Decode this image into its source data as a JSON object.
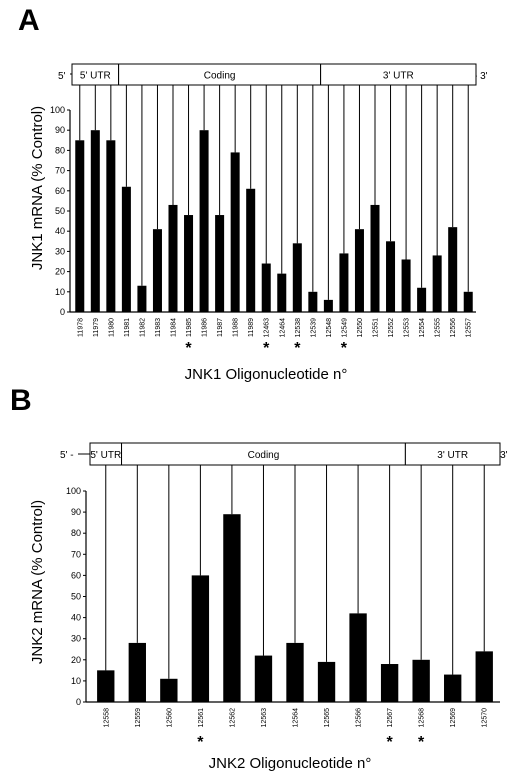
{
  "chart_data": [
    {
      "type": "bar",
      "panel_label": "A",
      "ylabel": "JNK1 mRNA (% Control)",
      "xlabel": "JNK1 Oligonucleotide n°",
      "ylim": [
        0,
        100
      ],
      "yticks": [
        0,
        10,
        20,
        30,
        40,
        50,
        60,
        70,
        80,
        90,
        100
      ],
      "end_labels": [
        "5'",
        "- 3'"
      ],
      "regions": [
        {
          "label": "5' UTR",
          "from": 0,
          "to": 2
        },
        {
          "label": "Coding",
          "from": 3,
          "to": 15
        },
        {
          "label": "3' UTR",
          "from": 16,
          "to": 27
        }
      ],
      "categories": [
        "11978",
        "11979",
        "11980",
        "11981",
        "11982",
        "11983",
        "11984",
        "11985",
        "11986",
        "11987",
        "11988",
        "11989",
        "12463",
        "12464",
        "12538",
        "12539",
        "12548",
        "12549",
        "12550",
        "12551",
        "12552",
        "12553",
        "12554",
        "12555",
        "12556",
        "12557"
      ],
      "values": [
        85,
        90,
        85,
        62,
        13,
        41,
        53,
        48,
        90,
        48,
        79,
        61,
        24,
        19,
        34,
        10,
        6,
        29,
        41,
        53,
        35,
        26,
        12,
        28,
        42,
        10
      ],
      "starred": [
        "11985",
        "12463",
        "12538",
        "12549"
      ]
    },
    {
      "type": "bar",
      "panel_label": "B",
      "ylabel": "JNK2 mRNA (% Control)",
      "xlabel": "JNK2 Oligonucleotide n°",
      "ylim": [
        0,
        100
      ],
      "yticks": [
        0,
        10,
        20,
        30,
        40,
        50,
        60,
        70,
        80,
        90,
        100
      ],
      "end_labels": [
        "5' -",
        "- 3'"
      ],
      "regions": [
        {
          "label": "5' UTR",
          "from": 0,
          "to": 0
        },
        {
          "label": "Coding",
          "from": 1,
          "to": 9
        },
        {
          "label": "3' UTR",
          "from": 10,
          "to": 12
        }
      ],
      "categories": [
        "12558",
        "12559",
        "12560",
        "12561",
        "12562",
        "12563",
        "12564",
        "12565",
        "12566",
        "12567",
        "12568",
        "12569",
        "12570"
      ],
      "values": [
        15,
        28,
        11,
        60,
        89,
        22,
        28,
        19,
        42,
        18,
        20,
        13,
        24
      ],
      "starred": [
        "12561",
        "12567",
        "12568"
      ]
    }
  ]
}
